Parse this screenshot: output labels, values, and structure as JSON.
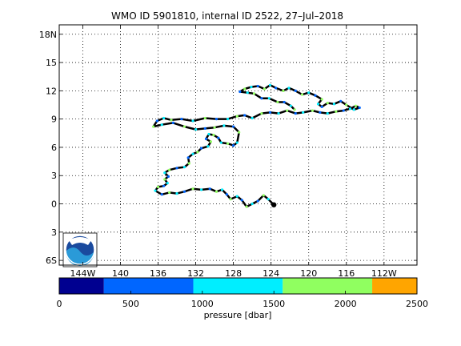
{
  "chart_data": {
    "type": "scatter",
    "title": "WMO ID 5901810, internal ID 2522, 27–Jul–2018",
    "xlabel": "",
    "ylabel": "",
    "grid": true,
    "xlim": [
      -146.5,
      -108.5
    ],
    "ylim": [
      -6.5,
      19
    ],
    "x_ticks": [
      -144,
      -140,
      -136,
      -132,
      -128,
      -124,
      -120,
      -116,
      -112
    ],
    "x_tick_labels": [
      "144W",
      "140",
      "136",
      "132",
      "128",
      "124",
      "120",
      "116",
      "112W"
    ],
    "y_ticks": [
      18,
      15,
      12,
      9,
      6,
      3,
      0,
      -3,
      -6
    ],
    "y_tick_labels": [
      "18N",
      "15",
      "12",
      "9",
      "6",
      "3",
      "0",
      "3",
      "6S"
    ],
    "track_lon_lat": [
      [
        -123.7,
        -0.1
      ],
      [
        -124.3,
        0.5
      ],
      [
        -124.8,
        0.9
      ],
      [
        -125.4,
        0.3
      ],
      [
        -126.0,
        0.0
      ],
      [
        -126.6,
        -0.3
      ],
      [
        -127.1,
        0.4
      ],
      [
        -127.6,
        0.8
      ],
      [
        -128.3,
        0.5
      ],
      [
        -128.7,
        1.0
      ],
      [
        -129.2,
        1.5
      ],
      [
        -129.8,
        1.3
      ],
      [
        -130.5,
        1.6
      ],
      [
        -131.4,
        1.5
      ],
      [
        -132.3,
        1.6
      ],
      [
        -133.2,
        1.3
      ],
      [
        -134.0,
        1.1
      ],
      [
        -134.8,
        1.2
      ],
      [
        -135.6,
        1.0
      ],
      [
        -136.3,
        1.4
      ],
      [
        -136.0,
        1.8
      ],
      [
        -135.4,
        1.9
      ],
      [
        -135.0,
        2.2
      ],
      [
        -135.3,
        2.6
      ],
      [
        -134.9,
        2.9
      ],
      [
        -135.3,
        3.3
      ],
      [
        -134.8,
        3.6
      ],
      [
        -134.0,
        3.8
      ],
      [
        -133.2,
        3.9
      ],
      [
        -132.7,
        4.3
      ],
      [
        -132.8,
        4.9
      ],
      [
        -132.3,
        5.3
      ],
      [
        -131.8,
        5.5
      ],
      [
        -131.4,
        5.9
      ],
      [
        -130.7,
        6.1
      ],
      [
        -130.4,
        6.6
      ],
      [
        -130.9,
        6.9
      ],
      [
        -130.6,
        7.4
      ],
      [
        -130.1,
        7.3
      ],
      [
        -129.6,
        7.0
      ],
      [
        -129.3,
        6.5
      ],
      [
        -128.6,
        6.4
      ],
      [
        -128.0,
        6.2
      ],
      [
        -127.6,
        6.5
      ],
      [
        -127.4,
        7.6
      ],
      [
        -128.0,
        8.2
      ],
      [
        -129.0,
        8.3
      ],
      [
        -130.0,
        8.1
      ],
      [
        -131.0,
        8.0
      ],
      [
        -132.0,
        7.9
      ],
      [
        -133.2,
        8.2
      ],
      [
        -134.4,
        8.6
      ],
      [
        -135.6,
        8.4
      ],
      [
        -136.5,
        8.2
      ],
      [
        -136.1,
        8.8
      ],
      [
        -135.4,
        9.1
      ],
      [
        -134.6,
        8.9
      ],
      [
        -133.5,
        9.0
      ],
      [
        -132.3,
        8.8
      ],
      [
        -131.0,
        9.1
      ],
      [
        -129.8,
        9.0
      ],
      [
        -128.6,
        9.0
      ],
      [
        -127.6,
        9.3
      ],
      [
        -126.8,
        9.4
      ],
      [
        -126.0,
        9.1
      ],
      [
        -125.0,
        9.6
      ],
      [
        -124.1,
        9.7
      ],
      [
        -123.2,
        9.6
      ],
      [
        -122.3,
        9.9
      ],
      [
        -121.4,
        9.6
      ],
      [
        -120.6,
        9.7
      ],
      [
        -119.6,
        9.9
      ],
      [
        -118.8,
        9.7
      ],
      [
        -118.0,
        9.6
      ],
      [
        -117.1,
        9.8
      ],
      [
        -116.3,
        9.9
      ],
      [
        -115.6,
        10.1
      ],
      [
        -115.0,
        10.4
      ],
      [
        -114.6,
        10.2
      ],
      [
        -115.2,
        10.0
      ],
      [
        -116.0,
        10.5
      ],
      [
        -116.6,
        10.9
      ],
      [
        -117.3,
        10.6
      ],
      [
        -118.0,
        10.7
      ],
      [
        -118.6,
        10.3
      ],
      [
        -119.0,
        10.6
      ],
      [
        -118.6,
        11.1
      ],
      [
        -119.3,
        11.5
      ],
      [
        -120.0,
        11.8
      ],
      [
        -120.7,
        11.6
      ],
      [
        -121.4,
        12.0
      ],
      [
        -122.1,
        12.3
      ],
      [
        -122.7,
        12.0
      ],
      [
        -123.5,
        12.3
      ],
      [
        -124.1,
        12.6
      ],
      [
        -124.7,
        12.2
      ],
      [
        -125.4,
        12.5
      ],
      [
        -126.1,
        12.4
      ],
      [
        -126.8,
        12.2
      ],
      [
        -127.3,
        11.9
      ],
      [
        -126.5,
        11.8
      ],
      [
        -125.8,
        11.7
      ],
      [
        -125.0,
        11.2
      ],
      [
        -124.2,
        11.2
      ],
      [
        -123.3,
        10.8
      ],
      [
        -122.6,
        10.8
      ],
      [
        -121.9,
        10.4
      ],
      [
        -121.5,
        10.0
      ]
    ],
    "colorbar": {
      "label": "pressure [dbar]",
      "range": [
        0,
        2500
      ],
      "tick_values": [
        0,
        500,
        1000,
        1500,
        2000,
        2500
      ],
      "tick_labels": [
        "0",
        "500",
        "1000",
        "1500",
        "2000",
        "2500"
      ],
      "bins": [
        {
          "from": 0,
          "to": 312,
          "color": "#000090"
        },
        {
          "from": 312,
          "to": 937,
          "color": "#0066ff"
        },
        {
          "from": 937,
          "to": 1562,
          "color": "#00eeff"
        },
        {
          "from": 1562,
          "to": 2187,
          "color": "#90ff60"
        },
        {
          "from": 2187,
          "to": 2500,
          "color": "#ffa500"
        }
      ]
    },
    "track_color": "#000000",
    "point_colors": [
      "#0066ff",
      "#00eeff",
      "#90ff60"
    ],
    "last_position": [
      -123.7,
      -0.1
    ],
    "legend": "none",
    "logo": "noaa-logo"
  }
}
